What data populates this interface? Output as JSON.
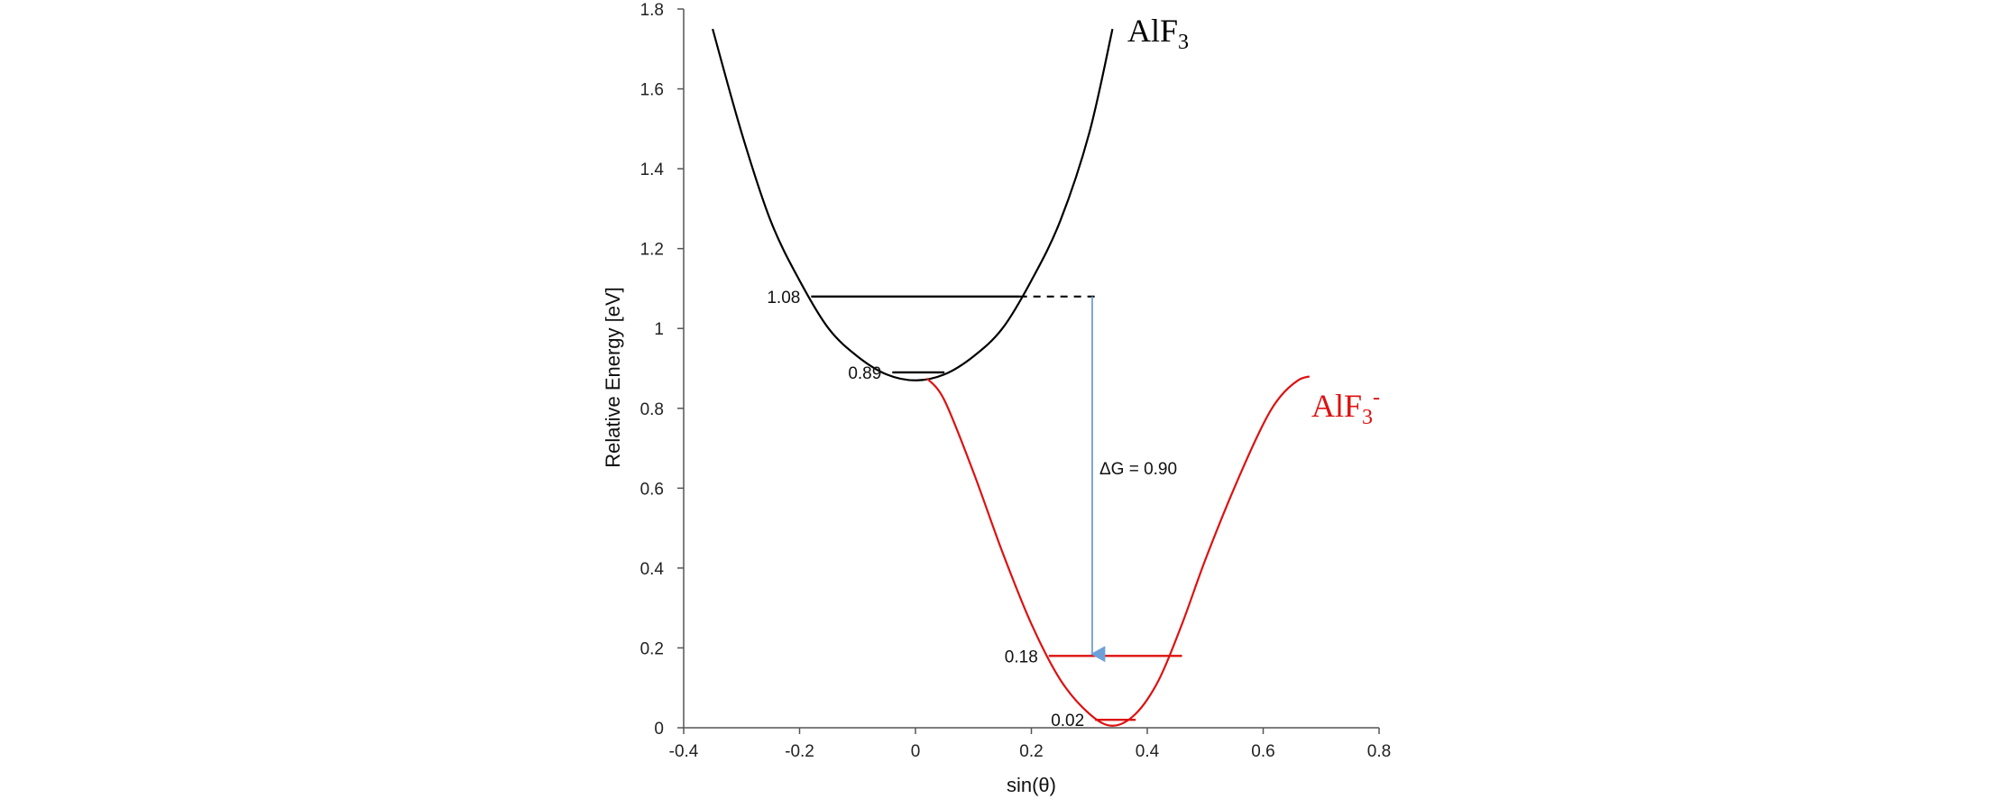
{
  "chart_data": {
    "type": "line",
    "xlabel": "sin(θ)",
    "ylabel": "Relative Energy [eV]",
    "xlim": [
      -0.4,
      0.8
    ],
    "ylim": [
      0,
      1.8
    ],
    "x_ticks": [
      "-0.4",
      "-0.2",
      "0",
      "0.2",
      "0.4",
      "0.6",
      "0.8"
    ],
    "y_ticks": [
      "0",
      "0.2",
      "0.4",
      "0.6",
      "0.8",
      "1",
      "1.2",
      "1.4",
      "1.6",
      "1.8"
    ],
    "grid": false,
    "colors": {
      "neutral": "#000000",
      "anion": "#dd1111",
      "arrow": "#6fa0d8"
    },
    "series": [
      {
        "name": "AlF3",
        "label_main": "AlF",
        "label_sub": "3",
        "label_sup": "",
        "x": [
          -0.35,
          -0.3,
          -0.25,
          -0.2,
          -0.15,
          -0.1,
          -0.05,
          0.0,
          0.05,
          0.1,
          0.15,
          0.2,
          0.25,
          0.3,
          0.34
        ],
        "y": [
          1.75,
          1.49,
          1.27,
          1.12,
          1.0,
          0.93,
          0.885,
          0.87,
          0.885,
          0.93,
          1.0,
          1.12,
          1.27,
          1.49,
          1.75
        ]
      },
      {
        "name": "AlF3-",
        "label_main": "AlF",
        "label_sub": "3",
        "label_sup": "-",
        "x": [
          0.02,
          0.05,
          0.1,
          0.15,
          0.2,
          0.25,
          0.3,
          0.34,
          0.38,
          0.42,
          0.46,
          0.5,
          0.55,
          0.6,
          0.63,
          0.66,
          0.68
        ],
        "y": [
          0.875,
          0.82,
          0.64,
          0.44,
          0.26,
          0.12,
          0.035,
          0.005,
          0.035,
          0.12,
          0.26,
          0.42,
          0.6,
          0.76,
          0.83,
          0.87,
          0.88
        ]
      }
    ],
    "levels": [
      {
        "label": "1.08",
        "y": 1.08,
        "x_start": -0.18,
        "x_end": 0.18,
        "series": "AlF3",
        "dashed_to": 0.31
      },
      {
        "label": "0.89",
        "y": 0.89,
        "x_start": -0.04,
        "x_end": 0.05,
        "series": "AlF3"
      },
      {
        "label": "0.18",
        "y": 0.18,
        "x_start": 0.23,
        "x_end": 0.46,
        "series": "AlF3-"
      },
      {
        "label": "0.02",
        "y": 0.02,
        "x_start": 0.31,
        "x_end": 0.38,
        "series": "AlF3-"
      }
    ],
    "annotations": [
      {
        "text": "ΔG = 0.90",
        "arrow_x": 0.305,
        "arrow_from_y": 1.08,
        "arrow_to_y": 0.18
      }
    ]
  }
}
